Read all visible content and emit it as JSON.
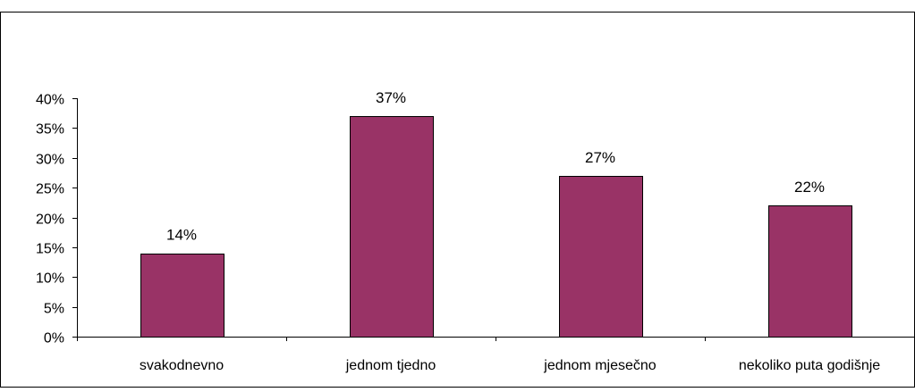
{
  "chart_data": {
    "type": "bar",
    "categories": [
      "svakodnevno",
      "jednom tjedno",
      "jednom mjesečno",
      "nekoliko puta godišnje"
    ],
    "values": [
      14,
      37,
      27,
      22
    ],
    "data_labels": [
      "14%",
      "37%",
      "27%",
      "22%"
    ],
    "title": "",
    "xlabel": "",
    "ylabel": "",
    "ylim": [
      0,
      40
    ],
    "yticks": [
      0,
      5,
      10,
      15,
      20,
      25,
      30,
      35,
      40
    ],
    "ytick_labels": [
      "0%",
      "5%",
      "10%",
      "15%",
      "20%",
      "25%",
      "30%",
      "35%",
      "40%"
    ],
    "grid": false,
    "legend": "none",
    "bar_color": "#993366",
    "bar_edge_color": "#000000"
  }
}
